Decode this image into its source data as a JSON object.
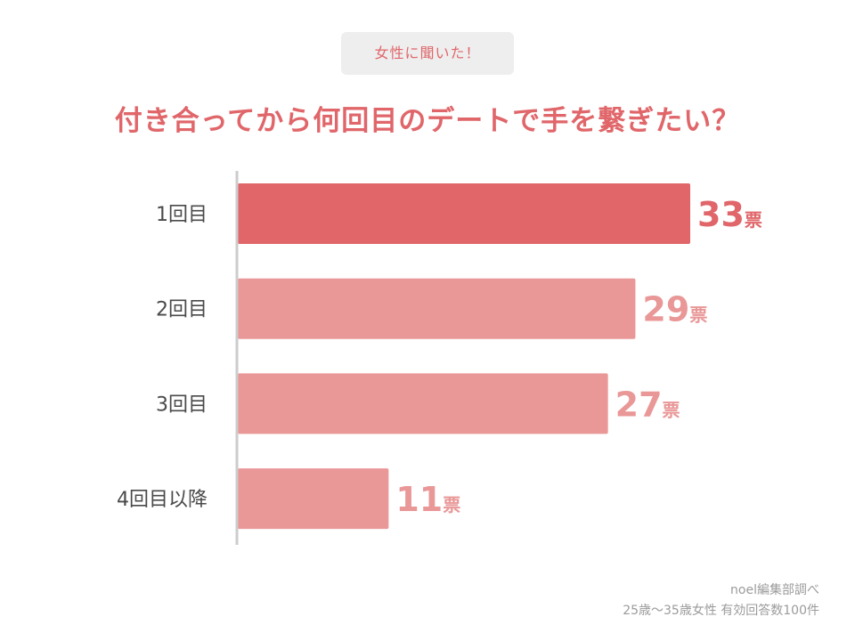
{
  "badge": "女性に聞いた！",
  "chart_data": {
    "type": "bar",
    "orientation": "horizontal",
    "title": "付き合ってから何回目のデートで手を繋ぎたい？",
    "categories": [
      "1回目",
      "2回目",
      "3回目",
      "4回目以降"
    ],
    "values": [
      33,
      29,
      27,
      11
    ],
    "unit": "票",
    "highlight_index": 0,
    "colors": {
      "highlight": "#e0666a",
      "bar": "#e99797",
      "axis": "#cccccc",
      "category_label": "#4a4a4a"
    }
  },
  "footer": {
    "source": "noel編集部調べ",
    "sample": "25歳〜35歳女性 有効回答数100件"
  }
}
